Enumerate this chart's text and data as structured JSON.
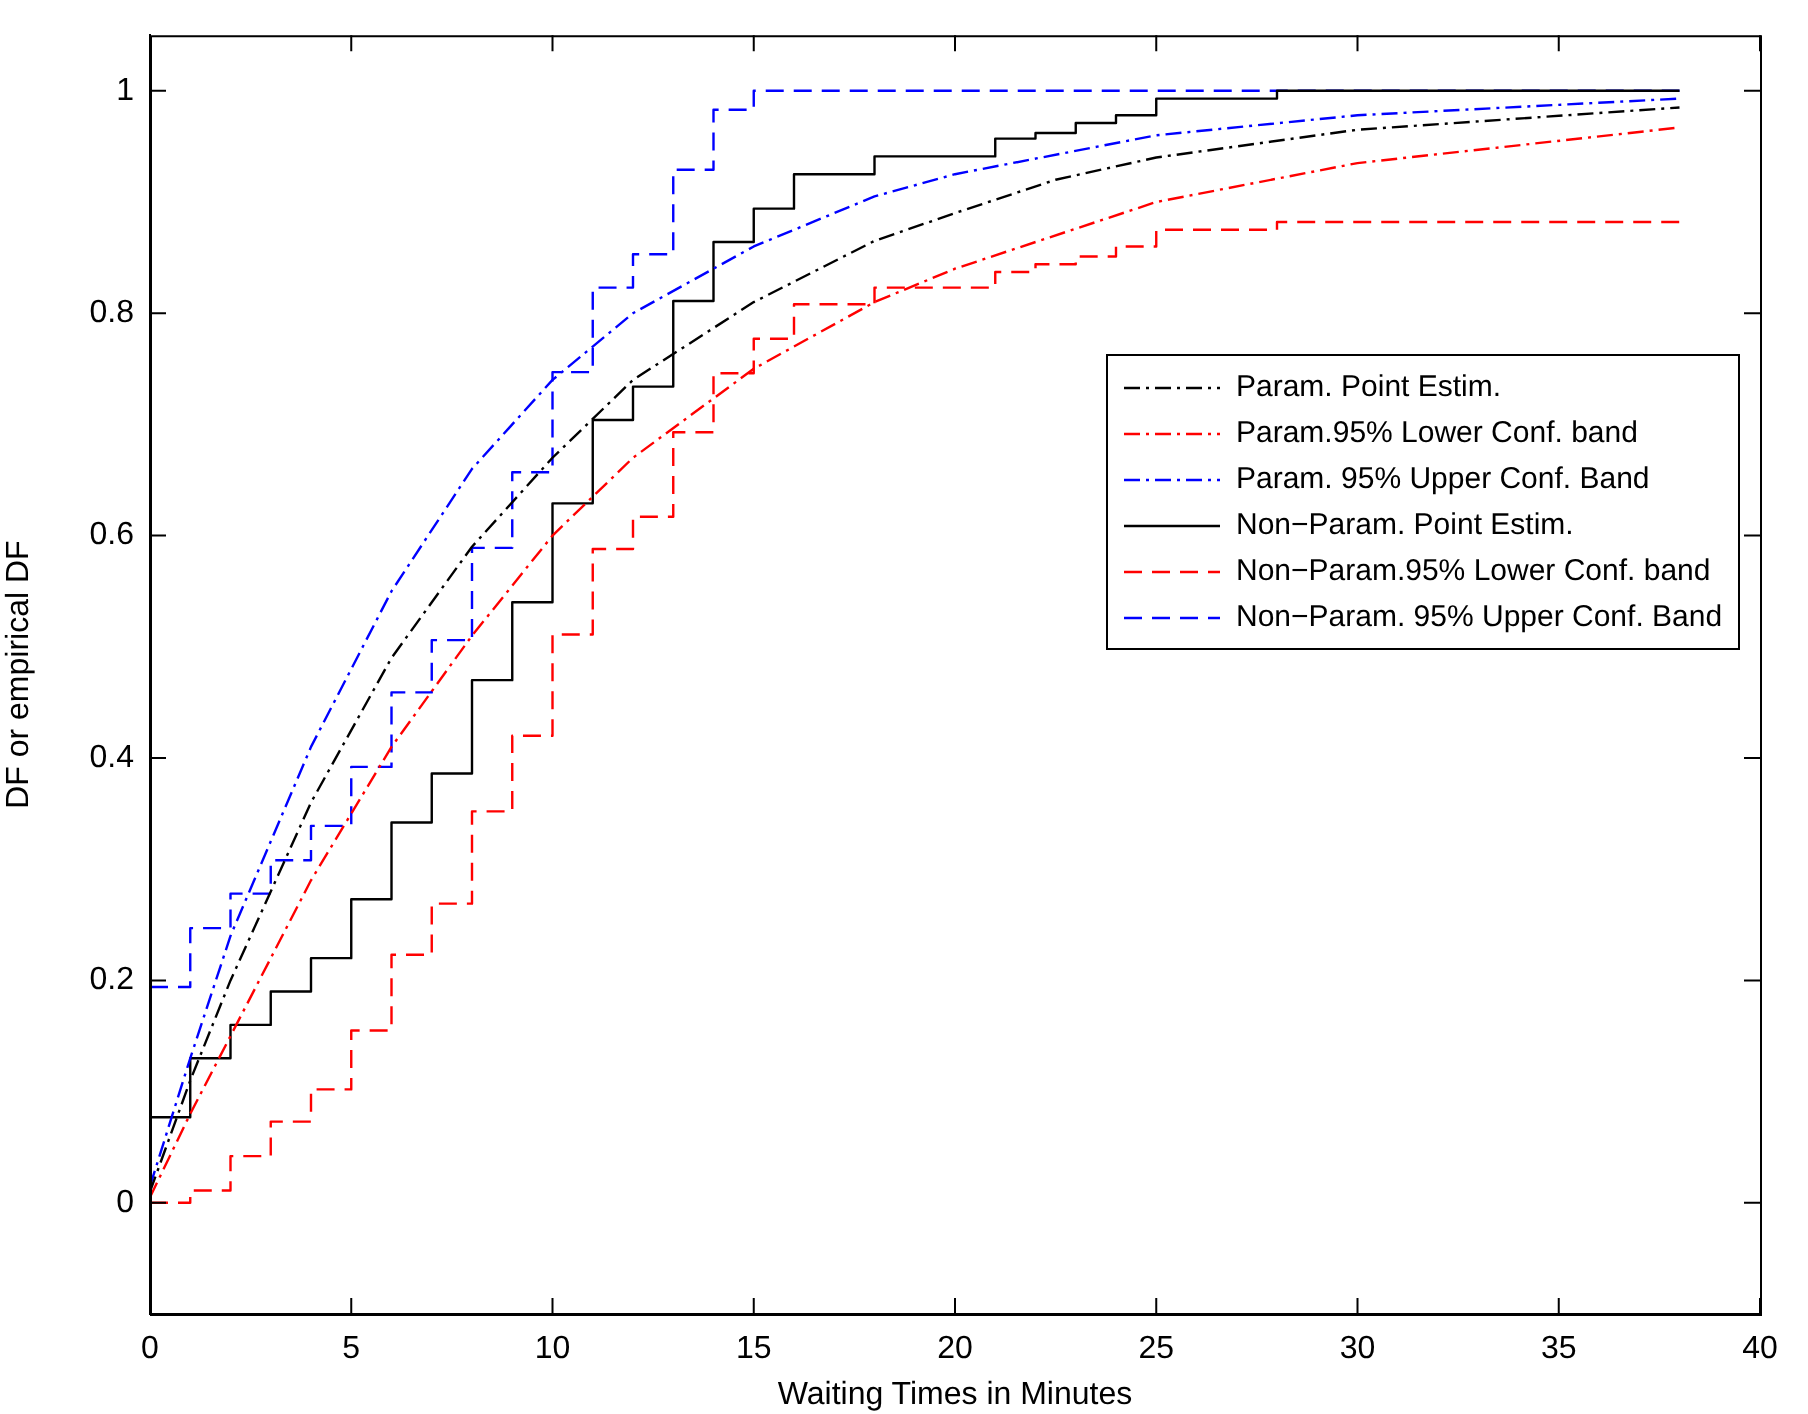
{
  "chart_data": {
    "type": "line",
    "xlabel": "Waiting Times in Minutes",
    "ylabel": "DF or empirical DF",
    "xlim": [
      0,
      40
    ],
    "xticks": [
      0,
      5,
      10,
      15,
      20,
      25,
      30,
      35,
      40
    ],
    "ylim": [
      -0.1,
      1.05
    ],
    "yticks": [
      0,
      0.2,
      0.4,
      0.6,
      0.8,
      1
    ],
    "grid": false,
    "legend": "right",
    "marker": "none",
    "series": [
      {
        "name": "Param. Point Estim.",
        "type": "line",
        "line_style": "dashdot",
        "color": "#000000",
        "x": [
          0,
          1,
          2,
          4,
          6,
          8,
          10,
          12,
          15,
          18,
          20,
          22.5,
          25,
          30,
          38
        ],
        "values": [
          0.01,
          0.11,
          0.2,
          0.36,
          0.49,
          0.59,
          0.67,
          0.74,
          0.81,
          0.865,
          0.89,
          0.92,
          0.94,
          0.965,
          0.985
        ]
      },
      {
        "name": "Param.95% Lower Conf. band",
        "type": "line",
        "line_style": "dashdot",
        "color": "#ff0000",
        "x": [
          0,
          1,
          2,
          4,
          6,
          8,
          10,
          12,
          15,
          18,
          20,
          25,
          30,
          38
        ],
        "values": [
          0.005,
          0.08,
          0.15,
          0.29,
          0.41,
          0.51,
          0.6,
          0.67,
          0.75,
          0.81,
          0.84,
          0.9,
          0.935,
          0.967
        ]
      },
      {
        "name": "Param. 95% Upper Conf. Band",
        "type": "line",
        "line_style": "dashdot",
        "color": "#0000ff",
        "x": [
          0,
          1,
          2,
          4,
          6,
          8,
          10,
          12,
          15,
          18,
          20,
          25,
          30,
          38
        ],
        "values": [
          0.015,
          0.13,
          0.24,
          0.41,
          0.55,
          0.66,
          0.74,
          0.8,
          0.86,
          0.905,
          0.925,
          0.96,
          0.978,
          0.993
        ]
      },
      {
        "name": "Non−Param. Point Estim.",
        "type": "step",
        "line_style": "solid",
        "color": "#000000",
        "x": [
          0,
          1,
          2,
          3,
          4,
          5,
          6,
          7,
          8,
          9,
          10,
          11,
          12,
          13,
          14,
          15,
          16,
          18,
          21,
          22,
          23,
          24,
          25,
          28,
          38
        ],
        "values": [
          0.077,
          0.13,
          0.16,
          0.19,
          0.22,
          0.273,
          0.342,
          0.386,
          0.47,
          0.54,
          0.629,
          0.704,
          0.734,
          0.811,
          0.864,
          0.894,
          0.925,
          0.941,
          0.957,
          0.962,
          0.971,
          0.978,
          0.993,
          1.0,
          1.0
        ]
      },
      {
        "name": "Non−Param.95% Lower Conf. band",
        "type": "step",
        "line_style": "dashed",
        "color": "#ff0000",
        "x": [
          0,
          1,
          2,
          3,
          4,
          5,
          6,
          7,
          8,
          9,
          10,
          11,
          12,
          13,
          14,
          15,
          16,
          18,
          21,
          22,
          23,
          24,
          25,
          28,
          38
        ],
        "values": [
          0.0,
          0.011,
          0.042,
          0.073,
          0.102,
          0.155,
          0.223,
          0.269,
          0.352,
          0.42,
          0.511,
          0.588,
          0.617,
          0.693,
          0.746,
          0.777,
          0.808,
          0.823,
          0.837,
          0.844,
          0.851,
          0.86,
          0.875,
          0.882,
          0.882
        ]
      },
      {
        "name": "Non−Param. 95% Upper Conf. Band",
        "type": "step",
        "line_style": "dashed",
        "color": "#0000ff",
        "x": [
          0,
          1,
          2,
          3,
          4,
          5,
          6,
          7,
          8,
          9,
          10,
          11,
          12,
          13,
          14,
          15,
          38
        ],
        "values": [
          0.194,
          0.247,
          0.278,
          0.308,
          0.339,
          0.392,
          0.459,
          0.506,
          0.589,
          0.657,
          0.747,
          0.823,
          0.853,
          0.929,
          0.983,
          1.0,
          1.0
        ]
      }
    ]
  }
}
